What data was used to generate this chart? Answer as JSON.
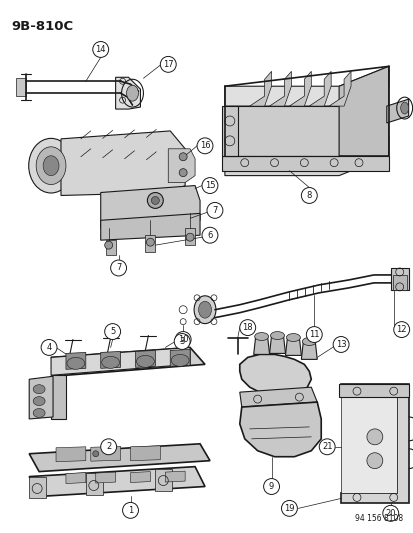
{
  "title": "9B-810C",
  "figure_code": "94 156 8108",
  "bg_color": "#ffffff",
  "line_color": "#1a1a1a",
  "figsize": [
    4.14,
    5.33
  ],
  "dpi": 100,
  "label_font": 6.0,
  "title_font": 9.5
}
